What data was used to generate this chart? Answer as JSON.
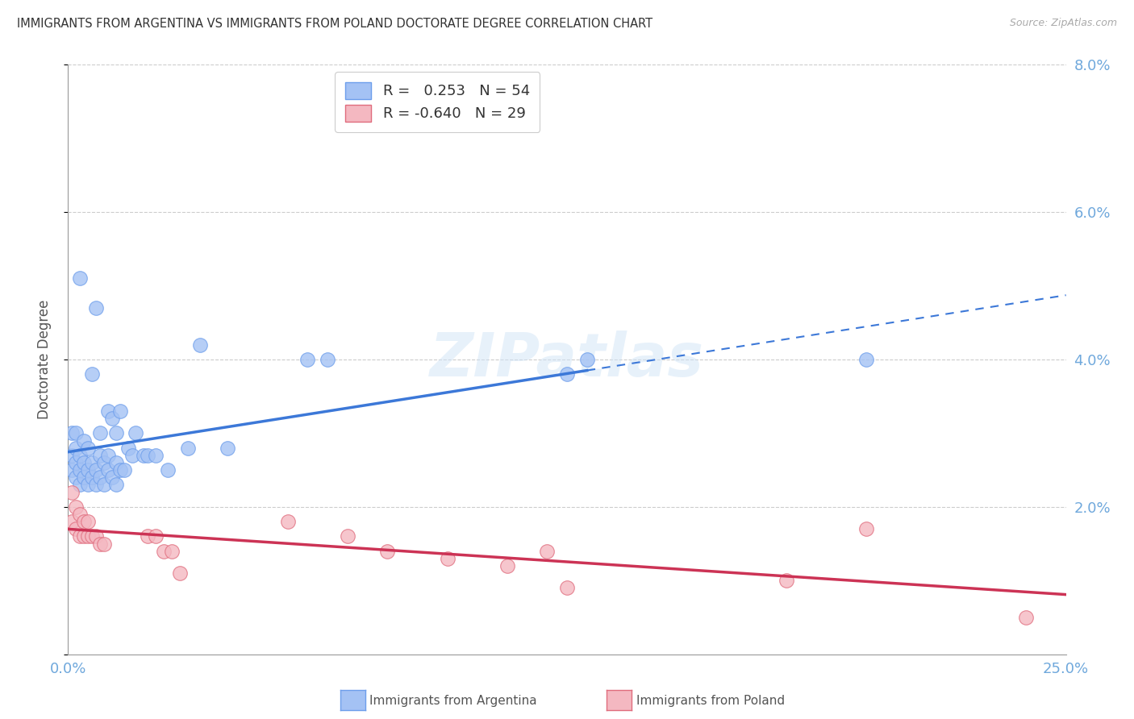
{
  "title": "IMMIGRANTS FROM ARGENTINA VS IMMIGRANTS FROM POLAND DOCTORATE DEGREE CORRELATION CHART",
  "source": "Source: ZipAtlas.com",
  "ylabel": "Doctorate Degree",
  "xlim": [
    0,
    0.25
  ],
  "ylim": [
    0,
    0.08
  ],
  "xtick_positions": [
    0.0,
    0.25
  ],
  "xtick_labels": [
    "0.0%",
    "25.0%"
  ],
  "ytick_positions": [
    0.0,
    0.02,
    0.04,
    0.06,
    0.08
  ],
  "ytick_labels_right": [
    "",
    "2.0%",
    "4.0%",
    "6.0%",
    "8.0%"
  ],
  "argentina_color": "#a4c2f4",
  "poland_color": "#f4b8c1",
  "argentina_edge_color": "#6d9eeb",
  "poland_edge_color": "#e06c7d",
  "argentina_line_color": "#3c78d8",
  "poland_line_color": "#cc3355",
  "argentina_R": 0.253,
  "argentina_N": 54,
  "poland_R": -0.64,
  "poland_N": 29,
  "background_color": "#ffffff",
  "grid_color": "#cccccc",
  "axis_color": "#6fa8dc",
  "title_color": "#333333",
  "watermark": "ZIPatlas",
  "arg_line_solid_end": 0.13,
  "argentina_x": [
    0.001,
    0.001,
    0.001,
    0.002,
    0.002,
    0.002,
    0.002,
    0.003,
    0.003,
    0.003,
    0.003,
    0.004,
    0.004,
    0.004,
    0.005,
    0.005,
    0.005,
    0.006,
    0.006,
    0.006,
    0.007,
    0.007,
    0.007,
    0.008,
    0.008,
    0.008,
    0.009,
    0.009,
    0.01,
    0.01,
    0.01,
    0.011,
    0.011,
    0.012,
    0.012,
    0.012,
    0.013,
    0.013,
    0.014,
    0.015,
    0.016,
    0.017,
    0.019,
    0.02,
    0.022,
    0.025,
    0.03,
    0.033,
    0.04,
    0.06,
    0.065,
    0.125,
    0.13,
    0.2
  ],
  "argentina_y": [
    0.025,
    0.027,
    0.03,
    0.024,
    0.026,
    0.028,
    0.03,
    0.023,
    0.025,
    0.027,
    0.051,
    0.024,
    0.026,
    0.029,
    0.023,
    0.025,
    0.028,
    0.024,
    0.026,
    0.038,
    0.023,
    0.025,
    0.047,
    0.024,
    0.027,
    0.03,
    0.023,
    0.026,
    0.025,
    0.027,
    0.033,
    0.024,
    0.032,
    0.023,
    0.026,
    0.03,
    0.025,
    0.033,
    0.025,
    0.028,
    0.027,
    0.03,
    0.027,
    0.027,
    0.027,
    0.025,
    0.028,
    0.042,
    0.028,
    0.04,
    0.04,
    0.038,
    0.04,
    0.04
  ],
  "poland_x": [
    0.001,
    0.001,
    0.002,
    0.002,
    0.003,
    0.003,
    0.004,
    0.004,
    0.005,
    0.005,
    0.006,
    0.007,
    0.008,
    0.009,
    0.02,
    0.022,
    0.024,
    0.026,
    0.028,
    0.055,
    0.07,
    0.08,
    0.095,
    0.11,
    0.12,
    0.125,
    0.18,
    0.2,
    0.24
  ],
  "poland_y": [
    0.018,
    0.022,
    0.017,
    0.02,
    0.016,
    0.019,
    0.016,
    0.018,
    0.016,
    0.018,
    0.016,
    0.016,
    0.015,
    0.015,
    0.016,
    0.016,
    0.014,
    0.014,
    0.011,
    0.018,
    0.016,
    0.014,
    0.013,
    0.012,
    0.014,
    0.009,
    0.01,
    0.017,
    0.005
  ]
}
